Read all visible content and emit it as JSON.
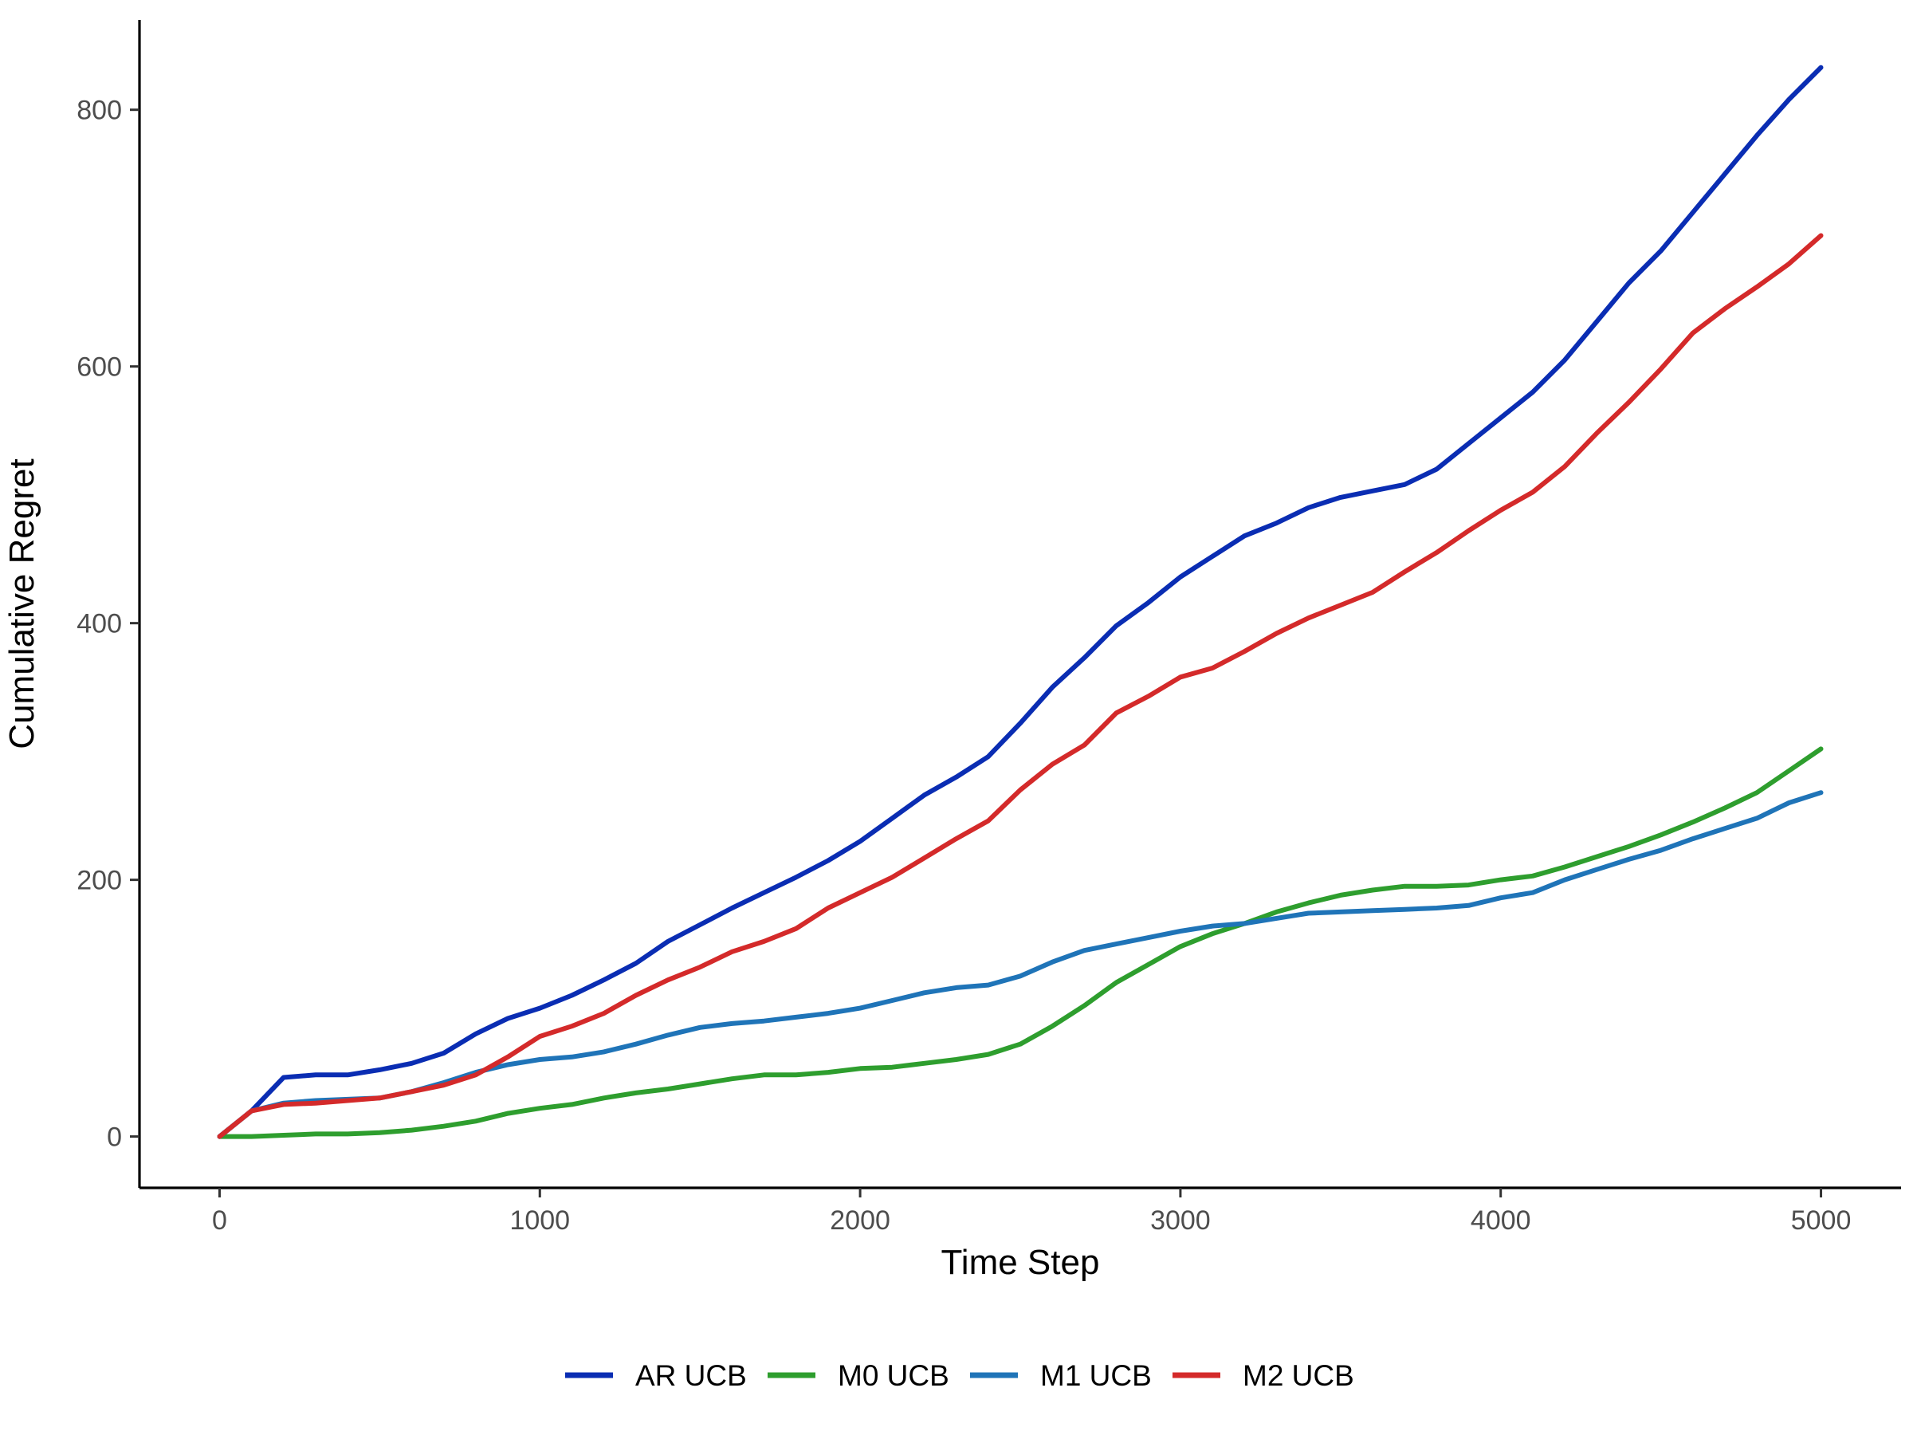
{
  "chart_data": {
    "type": "line",
    "title": "",
    "xlabel": "Time Step",
    "ylabel": "Cumulative Regret",
    "xlim": [
      -250,
      5250
    ],
    "ylim": [
      -40,
      870
    ],
    "x_ticks": [
      0,
      1000,
      2000,
      3000,
      4000,
      5000
    ],
    "y_ticks": [
      0,
      200,
      400,
      600,
      800
    ],
    "grid": false,
    "legend_position": "bottom",
    "series": [
      {
        "name": "AR UCB",
        "color": "#0a2db3",
        "points": [
          [
            0,
            0
          ],
          [
            100,
            20
          ],
          [
            200,
            46
          ],
          [
            300,
            48
          ],
          [
            400,
            48
          ],
          [
            500,
            52
          ],
          [
            600,
            57
          ],
          [
            700,
            65
          ],
          [
            800,
            80
          ],
          [
            900,
            92
          ],
          [
            1000,
            100
          ],
          [
            1100,
            110
          ],
          [
            1200,
            122
          ],
          [
            1300,
            135
          ],
          [
            1400,
            152
          ],
          [
            1500,
            165
          ],
          [
            1600,
            178
          ],
          [
            1700,
            190
          ],
          [
            1800,
            202
          ],
          [
            1900,
            215
          ],
          [
            2000,
            230
          ],
          [
            2100,
            248
          ],
          [
            2200,
            266
          ],
          [
            2300,
            280
          ],
          [
            2400,
            296
          ],
          [
            2500,
            322
          ],
          [
            2600,
            350
          ],
          [
            2700,
            373
          ],
          [
            2800,
            398
          ],
          [
            2900,
            416
          ],
          [
            3000,
            436
          ],
          [
            3100,
            452
          ],
          [
            3200,
            468
          ],
          [
            3300,
            478
          ],
          [
            3400,
            490
          ],
          [
            3500,
            498
          ],
          [
            3600,
            503
          ],
          [
            3700,
            508
          ],
          [
            3800,
            520
          ],
          [
            3900,
            540
          ],
          [
            4000,
            560
          ],
          [
            4100,
            580
          ],
          [
            4200,
            605
          ],
          [
            4300,
            635
          ],
          [
            4400,
            665
          ],
          [
            4500,
            690
          ],
          [
            4600,
            720
          ],
          [
            4700,
            750
          ],
          [
            4800,
            780
          ],
          [
            4900,
            808
          ],
          [
            5000,
            833
          ]
        ]
      },
      {
        "name": "M0 UCB",
        "color": "#2e9e2e",
        "points": [
          [
            0,
            0
          ],
          [
            100,
            0
          ],
          [
            200,
            1
          ],
          [
            300,
            2
          ],
          [
            400,
            2
          ],
          [
            500,
            3
          ],
          [
            600,
            5
          ],
          [
            700,
            8
          ],
          [
            800,
            12
          ],
          [
            900,
            18
          ],
          [
            1000,
            22
          ],
          [
            1100,
            25
          ],
          [
            1200,
            30
          ],
          [
            1300,
            34
          ],
          [
            1400,
            37
          ],
          [
            1500,
            41
          ],
          [
            1600,
            45
          ],
          [
            1700,
            48
          ],
          [
            1800,
            48
          ],
          [
            1900,
            50
          ],
          [
            2000,
            53
          ],
          [
            2100,
            54
          ],
          [
            2200,
            57
          ],
          [
            2300,
            60
          ],
          [
            2400,
            64
          ],
          [
            2500,
            72
          ],
          [
            2600,
            86
          ],
          [
            2700,
            102
          ],
          [
            2800,
            120
          ],
          [
            2900,
            134
          ],
          [
            3000,
            148
          ],
          [
            3100,
            158
          ],
          [
            3200,
            166
          ],
          [
            3300,
            175
          ],
          [
            3400,
            182
          ],
          [
            3500,
            188
          ],
          [
            3600,
            192
          ],
          [
            3700,
            195
          ],
          [
            3800,
            195
          ],
          [
            3900,
            196
          ],
          [
            4000,
            200
          ],
          [
            4100,
            203
          ],
          [
            4200,
            210
          ],
          [
            4300,
            218
          ],
          [
            4400,
            226
          ],
          [
            4500,
            235
          ],
          [
            4600,
            245
          ],
          [
            4700,
            256
          ],
          [
            4800,
            268
          ],
          [
            4900,
            285
          ],
          [
            5000,
            302
          ]
        ]
      },
      {
        "name": "M1 UCB",
        "color": "#1f74b8",
        "points": [
          [
            0,
            0
          ],
          [
            100,
            20
          ],
          [
            200,
            26
          ],
          [
            300,
            28
          ],
          [
            400,
            29
          ],
          [
            500,
            30
          ],
          [
            600,
            35
          ],
          [
            700,
            42
          ],
          [
            800,
            50
          ],
          [
            900,
            56
          ],
          [
            1000,
            60
          ],
          [
            1100,
            62
          ],
          [
            1200,
            66
          ],
          [
            1300,
            72
          ],
          [
            1400,
            79
          ],
          [
            1500,
            85
          ],
          [
            1600,
            88
          ],
          [
            1700,
            90
          ],
          [
            1800,
            93
          ],
          [
            1900,
            96
          ],
          [
            2000,
            100
          ],
          [
            2100,
            106
          ],
          [
            2200,
            112
          ],
          [
            2300,
            116
          ],
          [
            2400,
            118
          ],
          [
            2500,
            125
          ],
          [
            2600,
            136
          ],
          [
            2700,
            145
          ],
          [
            2800,
            150
          ],
          [
            2900,
            155
          ],
          [
            3000,
            160
          ],
          [
            3100,
            164
          ],
          [
            3200,
            166
          ],
          [
            3300,
            170
          ],
          [
            3400,
            174
          ],
          [
            3500,
            175
          ],
          [
            3600,
            176
          ],
          [
            3700,
            177
          ],
          [
            3800,
            178
          ],
          [
            3900,
            180
          ],
          [
            4000,
            186
          ],
          [
            4100,
            190
          ],
          [
            4200,
            200
          ],
          [
            4300,
            208
          ],
          [
            4400,
            216
          ],
          [
            4500,
            223
          ],
          [
            4600,
            232
          ],
          [
            4700,
            240
          ],
          [
            4800,
            248
          ],
          [
            4900,
            260
          ],
          [
            5000,
            268
          ]
        ]
      },
      {
        "name": "M2 UCB",
        "color": "#d42a2a",
        "points": [
          [
            0,
            0
          ],
          [
            100,
            20
          ],
          [
            200,
            25
          ],
          [
            300,
            26
          ],
          [
            400,
            28
          ],
          [
            500,
            30
          ],
          [
            600,
            35
          ],
          [
            700,
            40
          ],
          [
            800,
            48
          ],
          [
            900,
            62
          ],
          [
            1000,
            78
          ],
          [
            1100,
            86
          ],
          [
            1200,
            96
          ],
          [
            1300,
            110
          ],
          [
            1400,
            122
          ],
          [
            1500,
            132
          ],
          [
            1600,
            144
          ],
          [
            1700,
            152
          ],
          [
            1800,
            162
          ],
          [
            1900,
            178
          ],
          [
            2000,
            190
          ],
          [
            2100,
            202
          ],
          [
            2200,
            217
          ],
          [
            2300,
            232
          ],
          [
            2400,
            246
          ],
          [
            2500,
            270
          ],
          [
            2600,
            290
          ],
          [
            2700,
            305
          ],
          [
            2800,
            330
          ],
          [
            2900,
            343
          ],
          [
            3000,
            358
          ],
          [
            3100,
            365
          ],
          [
            3200,
            378
          ],
          [
            3300,
            392
          ],
          [
            3400,
            404
          ],
          [
            3500,
            414
          ],
          [
            3600,
            424
          ],
          [
            3700,
            440
          ],
          [
            3800,
            455
          ],
          [
            3900,
            472
          ],
          [
            4000,
            488
          ],
          [
            4100,
            502
          ],
          [
            4200,
            522
          ],
          [
            4300,
            548
          ],
          [
            4400,
            572
          ],
          [
            4500,
            598
          ],
          [
            4600,
            626
          ],
          [
            4700,
            645
          ],
          [
            4800,
            662
          ],
          [
            4900,
            680
          ],
          [
            5000,
            702
          ]
        ]
      }
    ]
  }
}
